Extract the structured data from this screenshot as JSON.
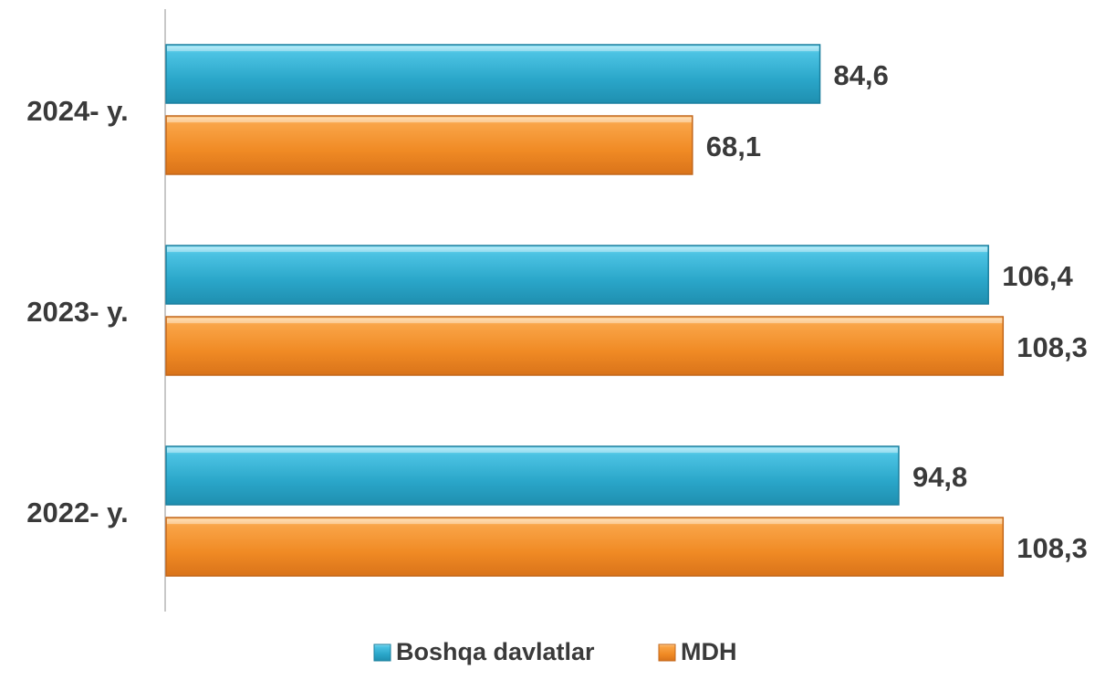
{
  "chart_data": {
    "type": "bar",
    "orientation": "horizontal",
    "categories": [
      "2024- y.",
      "2023- y.",
      "2022- y."
    ],
    "series": [
      {
        "name": "Boshqa davlatlar",
        "values": [
          84.6,
          106.4,
          94.8
        ],
        "value_labels": [
          "84,6",
          "106,4",
          "94,8"
        ],
        "color": "#2ea9cc"
      },
      {
        "name": "MDH",
        "values": [
          68.1,
          108.3,
          108.3
        ],
        "value_labels": [
          "68,1",
          "108,3",
          "108,3"
        ],
        "color": "#f08a24"
      }
    ],
    "xlim": [
      0,
      110
    ],
    "grid": false,
    "legend": "bottom"
  }
}
